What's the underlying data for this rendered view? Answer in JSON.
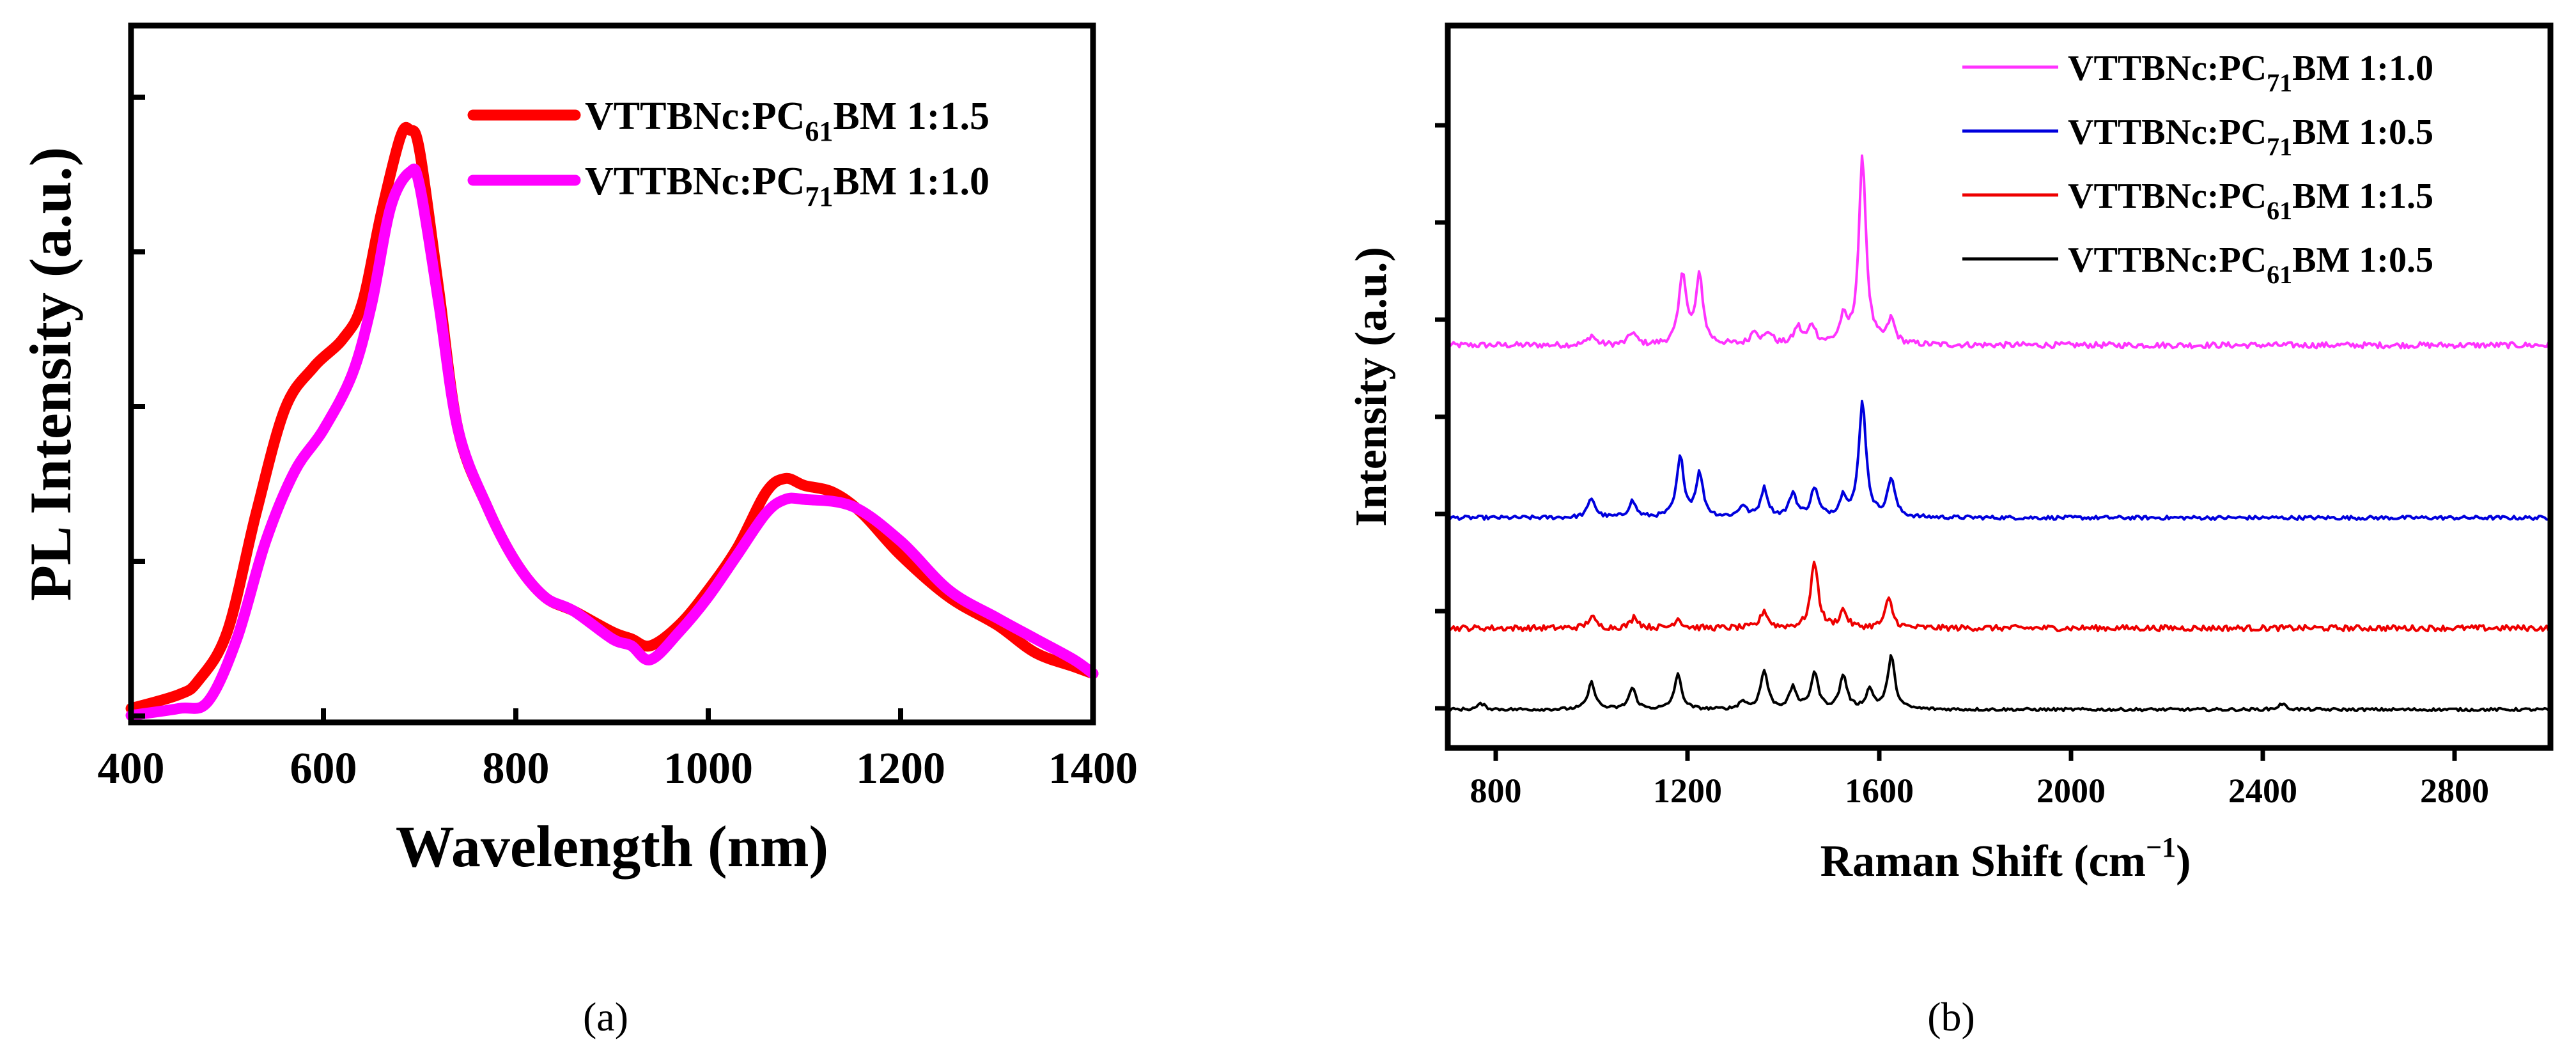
{
  "chart_data": [
    {
      "type": "line",
      "panel_label": "(a)",
      "panel_letter": "a",
      "xlabel": "Wavelength (nm)",
      "ylabel": "PL Intensity (a.u.)",
      "xlim": [
        400,
        1400
      ],
      "ylim": [
        0,
        1.0
      ],
      "x_ticks": [
        400,
        600,
        800,
        1000,
        1200,
        1400
      ],
      "y_ticks_labeled": false,
      "grid": false,
      "legend_position": "top-right",
      "series": [
        {
          "name": "VTTBNc:PC61BM 1:1.5",
          "name_parts": {
            "base": "VTTBNc:PC",
            "sub": "61",
            "rest": "BM 1:1.5"
          },
          "color": "#ff0000",
          "x": [
            400,
            450,
            470,
            500,
            530,
            560,
            590,
            620,
            640,
            660,
            680,
            690,
            700,
            720,
            740,
            770,
            800,
            830,
            860,
            900,
            920,
            940,
            970,
            1000,
            1030,
            1060,
            1080,
            1100,
            1130,
            1160,
            1200,
            1250,
            1300,
            1340,
            1380,
            1400
          ],
          "y": [
            0.02,
            0.04,
            0.06,
            0.13,
            0.3,
            0.45,
            0.51,
            0.55,
            0.6,
            0.73,
            0.84,
            0.85,
            0.82,
            0.62,
            0.42,
            0.31,
            0.23,
            0.18,
            0.16,
            0.13,
            0.12,
            0.11,
            0.14,
            0.19,
            0.25,
            0.33,
            0.35,
            0.34,
            0.33,
            0.3,
            0.24,
            0.18,
            0.14,
            0.1,
            0.08,
            0.07
          ]
        },
        {
          "name": "VTTBNc:PC71BM 1:1.0",
          "name_parts": {
            "base": "VTTBNc:PC",
            "sub": "71",
            "rest": "BM 1:1.0"
          },
          "color": "#ff00ff",
          "x": [
            400,
            450,
            480,
            510,
            540,
            570,
            600,
            630,
            650,
            670,
            690,
            700,
            720,
            740,
            770,
            800,
            830,
            860,
            900,
            920,
            940,
            970,
            1000,
            1030,
            1060,
            1080,
            1100,
            1150,
            1200,
            1250,
            1300,
            1340,
            1380,
            1400
          ],
          "y": [
            0.01,
            0.02,
            0.03,
            0.12,
            0.26,
            0.36,
            0.42,
            0.5,
            0.6,
            0.74,
            0.79,
            0.77,
            0.6,
            0.42,
            0.31,
            0.23,
            0.18,
            0.16,
            0.12,
            0.11,
            0.09,
            0.13,
            0.18,
            0.24,
            0.3,
            0.32,
            0.32,
            0.31,
            0.26,
            0.19,
            0.15,
            0.12,
            0.09,
            0.07
          ]
        }
      ]
    },
    {
      "type": "line",
      "panel_label": "(b)",
      "panel_letter": "b",
      "xlabel_base": "Raman Shift (cm",
      "xlabel_sup": "−1",
      "xlabel_close": ")",
      "ylabel": "Intensity (a.u.)",
      "xlim": [
        700,
        3000
      ],
      "ylim": [
        0,
        7.2
      ],
      "x_ticks": [
        800,
        1200,
        1600,
        2000,
        2400,
        2800
      ],
      "y_ticks_labeled": false,
      "grid": false,
      "legend_position": "top-right",
      "baseline_spacing": "series stacked with vertical offsets",
      "series": [
        {
          "name": "VTTBNc:PC71BM 1:1.0",
          "name_parts": {
            "base": "VTTBNc:PC",
            "sub": "71",
            "rest": "BM 1:1.0"
          },
          "color": "#ff33ff",
          "offset": 3.8,
          "noise": 0.03,
          "peaks": [
            [
              1000,
              0.1
            ],
            [
              1085,
              0.13
            ],
            [
              1190,
              0.75
            ],
            [
              1225,
              0.7
            ],
            [
              1340,
              0.15
            ],
            [
              1370,
              0.12
            ],
            [
              1430,
              0.18
            ],
            [
              1460,
              0.2
            ],
            [
              1525,
              0.25
            ],
            [
              1565,
              1.95
            ],
            [
              1625,
              0.25
            ]
          ]
        },
        {
          "name": "VTTBNc:PC71BM 1:0.5",
          "name_parts": {
            "base": "VTTBNc:PC",
            "sub": "71",
            "rest": "BM 1:0.5"
          },
          "color": "#0000dd",
          "offset": 2.0,
          "noise": 0.02,
          "peaks": [
            [
              1000,
              0.2
            ],
            [
              1085,
              0.17
            ],
            [
              1185,
              0.62
            ],
            [
              1225,
              0.45
            ],
            [
              1315,
              0.12
            ],
            [
              1360,
              0.3
            ],
            [
              1420,
              0.25
            ],
            [
              1465,
              0.3
            ],
            [
              1525,
              0.2
            ],
            [
              1565,
              1.2
            ],
            [
              1625,
              0.4
            ]
          ]
        },
        {
          "name": "VTTBNc:PC61BM 1:1.5",
          "name_parts": {
            "base": "VTTBNc:PC",
            "sub": "61",
            "rest": "BM 1:1.5"
          },
          "color": "#ee0000",
          "offset": 0.85,
          "noise": 0.03,
          "peaks": [
            [
              1000,
              0.12
            ],
            [
              1090,
              0.12
            ],
            [
              1180,
              0.1
            ],
            [
              1360,
              0.18
            ],
            [
              1465,
              0.7
            ],
            [
              1525,
              0.18
            ],
            [
              1620,
              0.3
            ]
          ]
        },
        {
          "name": "VTTBNc:PC61BM 1:0.5",
          "name_parts": {
            "base": "VTTBNc:PC",
            "sub": "61",
            "rest": "BM 1:0.5"
          },
          "color": "#000000",
          "offset": 0.0,
          "noise": 0.015,
          "peaks": [
            [
              770,
              0.06
            ],
            [
              1000,
              0.28
            ],
            [
              1085,
              0.22
            ],
            [
              1180,
              0.36
            ],
            [
              1315,
              0.08
            ],
            [
              1360,
              0.4
            ],
            [
              1420,
              0.22
            ],
            [
              1465,
              0.38
            ],
            [
              1525,
              0.35
            ],
            [
              1580,
              0.2
            ],
            [
              1625,
              0.55
            ],
            [
              2440,
              0.06
            ]
          ]
        }
      ]
    }
  ]
}
